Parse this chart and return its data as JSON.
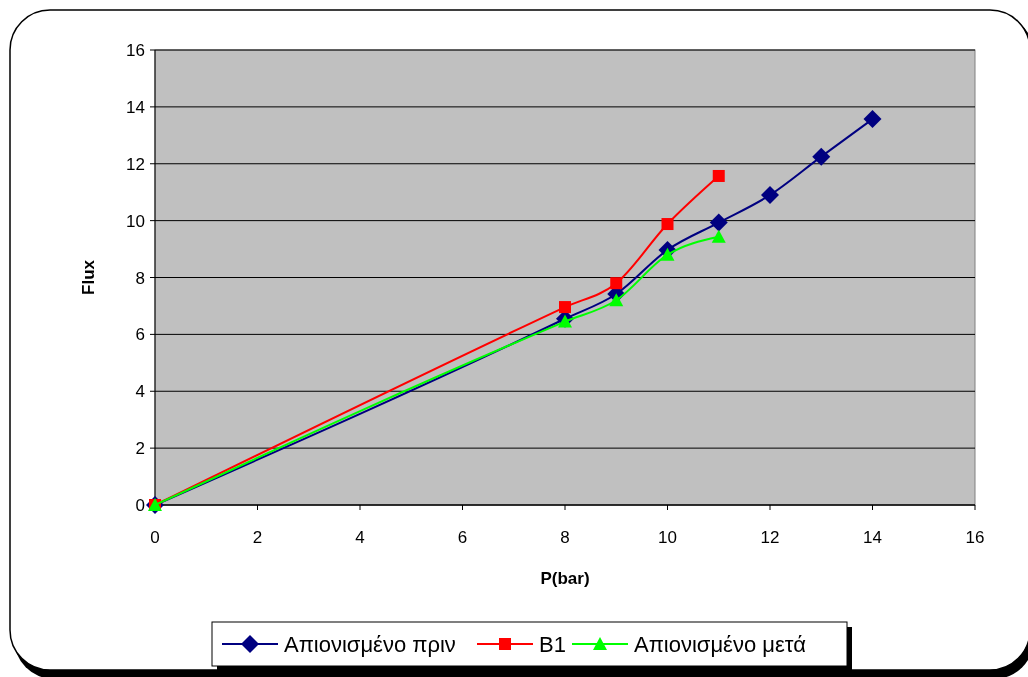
{
  "chart_data": {
    "type": "line",
    "xlabel": "P(bar)",
    "ylabel": "Flux",
    "xlim": [
      0,
      16
    ],
    "xticks": [
      0,
      2,
      4,
      6,
      8,
      10,
      12,
      14,
      16
    ],
    "ylim": [
      0,
      16
    ],
    "yticks": [
      0,
      2,
      4,
      6,
      8,
      10,
      12,
      14,
      16
    ],
    "grid": "y",
    "legend": "bottom",
    "series": [
      {
        "name": "Απιονισμένο πριν",
        "color": "#000080",
        "marker": "diamond",
        "x": [
          0,
          8,
          9,
          10,
          11,
          12,
          13,
          14
        ],
        "values": [
          0,
          6.55,
          7.42,
          8.97,
          9.93,
          10.9,
          12.25,
          13.57
        ]
      },
      {
        "name": "B1",
        "color": "#ff0000",
        "marker": "square",
        "x": [
          0,
          8,
          9,
          10,
          11
        ],
        "values": [
          0,
          6.96,
          7.8,
          9.88,
          11.57
        ]
      },
      {
        "name": "Απιονισμένο μετά",
        "color": "#00ff00",
        "marker": "triangle",
        "x": [
          0,
          8,
          9,
          10,
          11
        ],
        "values": [
          0,
          6.45,
          7.2,
          8.8,
          9.43
        ]
      }
    ]
  }
}
